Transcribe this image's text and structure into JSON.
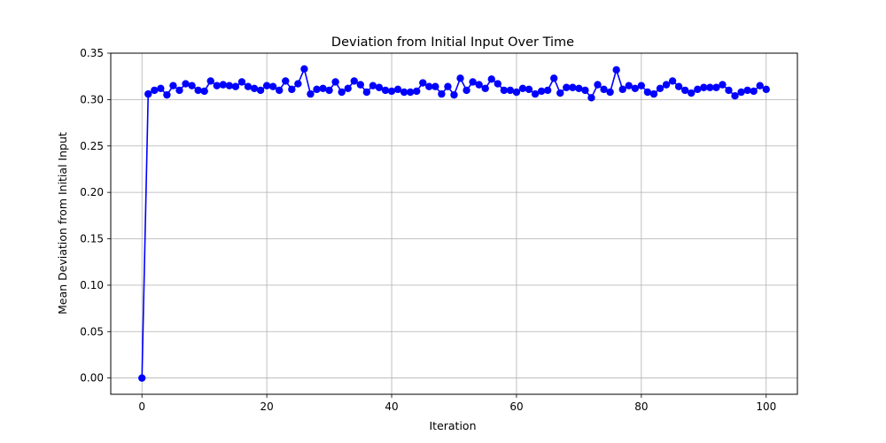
{
  "chart_data": {
    "type": "line",
    "title": "Deviation from Initial Input Over Time",
    "xlabel": "Iteration",
    "ylabel": "Mean Deviation from Initial Input",
    "xlim": [
      -5,
      105
    ],
    "ylim": [
      -0.0175,
      0.35
    ],
    "xticks": [
      0,
      20,
      40,
      60,
      80,
      100
    ],
    "yticks": [
      0.0,
      0.05,
      0.1,
      0.15,
      0.2,
      0.25,
      0.3,
      0.35
    ],
    "xtick_labels": [
      "0",
      "20",
      "40",
      "60",
      "80",
      "100"
    ],
    "ytick_labels": [
      "0.00",
      "0.05",
      "0.10",
      "0.15",
      "0.20",
      "0.25",
      "0.30",
      "0.35"
    ],
    "grid": true,
    "series": [
      {
        "color": "#0000ff",
        "marker": "circle",
        "x": [
          0,
          1,
          2,
          3,
          4,
          5,
          6,
          7,
          8,
          9,
          10,
          11,
          12,
          13,
          14,
          15,
          16,
          17,
          18,
          19,
          20,
          21,
          22,
          23,
          24,
          25,
          26,
          27,
          28,
          29,
          30,
          31,
          32,
          33,
          34,
          35,
          36,
          37,
          38,
          39,
          40,
          41,
          42,
          43,
          44,
          45,
          46,
          47,
          48,
          49,
          50,
          51,
          52,
          53,
          54,
          55,
          56,
          57,
          58,
          59,
          60,
          61,
          62,
          63,
          64,
          65,
          66,
          67,
          68,
          69,
          70,
          71,
          72,
          73,
          74,
          75,
          76,
          77,
          78,
          79,
          80,
          81,
          82,
          83,
          84,
          85,
          86,
          87,
          88,
          89,
          90,
          91,
          92,
          93,
          94,
          95,
          96,
          97,
          98,
          99,
          100
        ],
        "values": [
          0.0,
          0.306,
          0.31,
          0.312,
          0.305,
          0.315,
          0.31,
          0.317,
          0.315,
          0.31,
          0.309,
          0.32,
          0.315,
          0.316,
          0.315,
          0.314,
          0.319,
          0.314,
          0.312,
          0.31,
          0.315,
          0.314,
          0.31,
          0.32,
          0.311,
          0.317,
          0.333,
          0.306,
          0.311,
          0.312,
          0.31,
          0.319,
          0.308,
          0.312,
          0.32,
          0.316,
          0.308,
          0.315,
          0.313,
          0.31,
          0.309,
          0.311,
          0.308,
          0.308,
          0.309,
          0.318,
          0.314,
          0.314,
          0.306,
          0.314,
          0.305,
          0.323,
          0.31,
          0.319,
          0.316,
          0.312,
          0.322,
          0.317,
          0.31,
          0.31,
          0.308,
          0.312,
          0.311,
          0.306,
          0.309,
          0.31,
          0.323,
          0.307,
          0.313,
          0.313,
          0.312,
          0.31,
          0.302,
          0.316,
          0.311,
          0.308,
          0.332,
          0.311,
          0.315,
          0.312,
          0.315,
          0.308,
          0.306,
          0.312,
          0.316,
          0.32,
          0.314,
          0.31,
          0.307,
          0.311,
          0.313,
          0.313,
          0.313,
          0.316,
          0.31,
          0.304,
          0.308,
          0.31,
          0.309,
          0.315,
          0.311
        ]
      }
    ]
  }
}
